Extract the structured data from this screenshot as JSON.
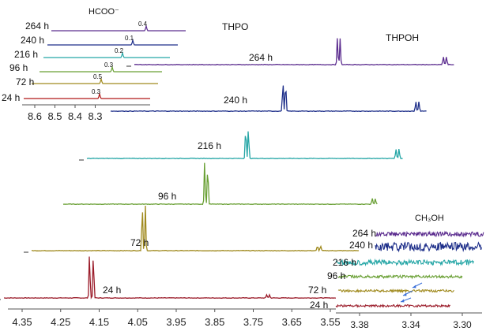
{
  "chart_data": [
    {
      "type": "line",
      "chart": "main",
      "title": "",
      "xlabel": "",
      "ylabel": "",
      "xlim": [
        4.35,
        3.55
      ],
      "x_ticks": [
        "4.35",
        "4.25",
        "4.15",
        "4.05",
        "3.95",
        "3.85",
        "3.75",
        "3.65",
        "3.55"
      ],
      "peak_labels": [
        "THPO",
        "THPOH"
      ],
      "series": [
        {
          "name": "24 h",
          "color": "#9b1c2a",
          "peaks": [
            4.175,
            4.165
          ],
          "peak_heights": [
            60,
            58
          ],
          "minor_peaks": [
            3.715,
            3.708
          ],
          "minor_heights": [
            4,
            4
          ]
        },
        {
          "name": "72 h",
          "color": "#a08a1e",
          "peaks": [
            4.11,
            4.102
          ],
          "peak_heights": [
            60,
            58
          ],
          "minor_peaks": [
            3.655,
            3.647
          ],
          "minor_heights": [
            6,
            6
          ]
        },
        {
          "name": "96 h",
          "color": "#6aa035",
          "peaks": [
            4.03,
            4.022
          ],
          "peak_heights": [
            55,
            52
          ],
          "minor_peaks": [
            3.595,
            3.587
          ],
          "minor_heights": [
            7,
            7
          ]
        },
        {
          "name": "216 h",
          "color": "#25a6a6",
          "peaks": [
            3.985,
            3.978
          ],
          "peak_heights": [
            42,
            40
          ],
          "minor_peaks": [
            3.595,
            3.587
          ],
          "minor_heights": [
            12,
            12
          ]
        },
        {
          "name": "240 h",
          "color": "#1e2f8a",
          "peaks": [
            3.95,
            3.943
          ],
          "peak_heights": [
            40,
            38
          ],
          "minor_peaks": [
            3.605,
            3.597
          ],
          "minor_heights": [
            12,
            12
          ]
        },
        {
          "name": "264 h",
          "color": "#5c2d8f",
          "peaks": [
            3.87,
            3.863
          ],
          "peak_heights": [
            35,
            33
          ],
          "minor_peaks": [
            3.595,
            3.587
          ],
          "minor_heights": [
            10,
            10
          ]
        }
      ]
    },
    {
      "type": "line",
      "chart": "inset-formate",
      "title": "HCOO⁻",
      "xlabel": "",
      "ylabel": "",
      "xlim": [
        8.65,
        8.25
      ],
      "x_ticks": [
        "8.6",
        "8.5",
        "8.4",
        "8.3"
      ],
      "series": [
        {
          "name": "24 h",
          "color": "#b01818",
          "value_label": "0.3",
          "peak": 8.41
        },
        {
          "name": "72 h",
          "color": "#a08a1e",
          "value_label": "0.5",
          "peak": 8.43
        },
        {
          "name": "96 h",
          "color": "#6aa035",
          "value_label": "0.3",
          "peak": 8.42
        },
        {
          "name": "216 h",
          "color": "#25a6a6",
          "value_label": "0.2",
          "peak": 8.4
        },
        {
          "name": "240 h",
          "color": "#1e2f8a",
          "value_label": "0.1",
          "peak": 8.38
        },
        {
          "name": "264 h",
          "color": "#5c2d8f",
          "value_label": "0.4",
          "peak": 8.35
        }
      ]
    },
    {
      "type": "line",
      "chart": "inset-methanol",
      "title": "CH₃OH",
      "xlabel": "",
      "ylabel": "",
      "xlim": [
        3.4,
        3.29
      ],
      "x_ticks": [
        "3.38",
        "3.34",
        "3.30"
      ],
      "series": [
        {
          "name": "24 h",
          "color": "#9b1c2a",
          "noise": 1.5
        },
        {
          "name": "72 h",
          "color": "#a08a1e",
          "noise": 1.5
        },
        {
          "name": "96 h",
          "color": "#6aa035",
          "noise": 1.8
        },
        {
          "name": "216 h",
          "color": "#25a6a6",
          "noise": 3.0
        },
        {
          "name": "240 h",
          "color": "#1e2f8a",
          "noise": 5.5
        },
        {
          "name": "264 h",
          "color": "#5c2d8f",
          "noise": 3.0
        }
      ]
    }
  ]
}
